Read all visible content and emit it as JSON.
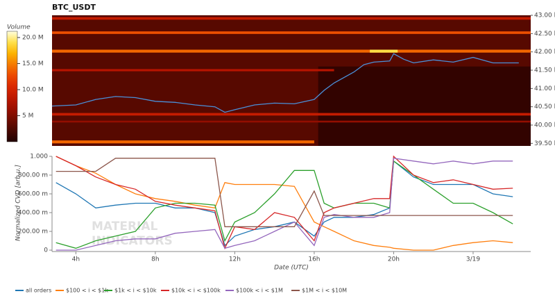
{
  "chart_data": [
    {
      "type": "heatmap",
      "title": "BTC_USDT",
      "xlim": [
        2.8,
        26.9
      ],
      "ylim": [
        39.43,
        43.0
      ],
      "yticks": [
        {
          "value": 43.0,
          "label": "43.00 k"
        },
        {
          "value": 42.5,
          "label": "42.50 k"
        },
        {
          "value": 42.0,
          "label": "42.00 k"
        },
        {
          "value": 41.5,
          "label": "41.50 k"
        },
        {
          "value": 41.0,
          "label": "41.00 k"
        },
        {
          "value": 40.5,
          "label": "40.50 k"
        },
        {
          "value": 40.0,
          "label": "40.00 k"
        },
        {
          "value": 39.5,
          "label": "39.50 k"
        }
      ],
      "colorbar": {
        "label": "Volume",
        "lim": [
          0,
          21.2
        ],
        "ticks": [
          {
            "value": 20,
            "label": "20.0 M"
          },
          {
            "value": 15,
            "label": "15.0 M"
          },
          {
            "value": 10,
            "label": "10.0 M"
          },
          {
            "value": 5,
            "label": "5 M"
          }
        ]
      },
      "bands": [
        {
          "low": 39.43,
          "high": 43.0,
          "start": 2.8,
          "end": 26.9,
          "volume": 3
        },
        {
          "low": 39.43,
          "high": 41.6,
          "start": 16.2,
          "end": 26.9,
          "volume": 1
        },
        {
          "low": 42.88,
          "high": 42.95,
          "start": 2.8,
          "end": 26.9,
          "volume": 9
        },
        {
          "low": 42.49,
          "high": 42.56,
          "start": 2.8,
          "end": 26.9,
          "volume": 13
        },
        {
          "low": 41.98,
          "high": 42.06,
          "start": 2.8,
          "end": 26.9,
          "volume": 14
        },
        {
          "low": 41.98,
          "high": 42.06,
          "start": 18.8,
          "end": 20.2,
          "volume": 19
        },
        {
          "low": 41.47,
          "high": 41.53,
          "start": 2.8,
          "end": 17.0,
          "volume": 8
        },
        {
          "low": 40.26,
          "high": 40.33,
          "start": 2.8,
          "end": 26.9,
          "volume": 9
        },
        {
          "low": 40.07,
          "high": 40.12,
          "start": 2.8,
          "end": 26.9,
          "volume": 6
        },
        {
          "low": 39.5,
          "high": 39.58,
          "start": 2.8,
          "end": 16.0,
          "volume": 14
        }
      ],
      "price": {
        "color": "#4a90d9",
        "x": [
          2.8,
          4,
          5,
          6,
          7,
          8,
          9,
          10,
          11,
          11.5,
          12,
          13,
          14,
          15,
          16,
          16.5,
          17,
          18,
          18.5,
          19,
          19.8,
          20,
          20.5,
          21,
          22,
          23,
          24,
          25,
          26.3
        ],
        "y": [
          40.52,
          40.55,
          40.7,
          40.78,
          40.75,
          40.65,
          40.62,
          40.55,
          40.5,
          40.35,
          40.42,
          40.55,
          40.6,
          40.58,
          40.7,
          40.95,
          41.15,
          41.45,
          41.65,
          41.72,
          41.75,
          41.95,
          41.8,
          41.7,
          41.78,
          41.72,
          41.85,
          41.7,
          41.7
        ]
      }
    },
    {
      "type": "line",
      "xlabel": "Date (UTC)",
      "ylabel": "Normalized CVD [arb.u.]",
      "xlim": [
        2.8,
        26.9
      ],
      "ylim": [
        0,
        1
      ],
      "xticks": [
        {
          "value": 4,
          "label": "4h"
        },
        {
          "value": 8,
          "label": "8h"
        },
        {
          "value": 12,
          "label": "12h"
        },
        {
          "value": 16,
          "label": "16h"
        },
        {
          "value": 20,
          "label": "20h"
        },
        {
          "value": 24,
          "label": "3/19"
        }
      ],
      "yticks": [
        {
          "value": 1,
          "label": "1.000"
        },
        {
          "value": 0.8,
          "label": "800.00 m"
        },
        {
          "value": 0.6,
          "label": "600.00 m"
        },
        {
          "value": 0.4,
          "label": "400.00 m"
        },
        {
          "value": 0.2,
          "label": "200.00 m"
        },
        0
      ],
      "watermark": [
        "MATERIAL",
        "INDICATORS"
      ],
      "x": [
        3,
        4,
        5,
        6,
        7,
        8,
        9,
        10,
        11,
        11.5,
        12,
        13,
        14,
        15,
        16,
        16.5,
        17,
        18,
        19,
        19.8,
        20,
        21,
        22,
        23,
        24,
        25,
        26
      ],
      "series": [
        {
          "name": "all orders",
          "color": "#1f77b4",
          "values": [
            0.72,
            0.6,
            0.45,
            0.48,
            0.5,
            0.5,
            0.45,
            0.45,
            0.4,
            0.05,
            0.15,
            0.22,
            0.25,
            0.3,
            0.15,
            0.3,
            0.35,
            0.35,
            0.38,
            0.45,
            0.95,
            0.78,
            0.7,
            0.7,
            0.7,
            0.6,
            0.57
          ]
        },
        {
          "name": "$100 < i < $1k",
          "color": "#ff7f0e",
          "values": [
            1.0,
            0.9,
            0.82,
            0.7,
            0.6,
            0.55,
            0.52,
            0.48,
            0.45,
            0.72,
            0.7,
            0.7,
            0.7,
            0.68,
            0.3,
            0.25,
            0.2,
            0.1,
            0.05,
            0.03,
            0.02,
            0.0,
            0.0,
            0.05,
            0.08,
            0.1,
            0.08
          ]
        },
        {
          "name": "$1k < i < $10k",
          "color": "#2ca02c",
          "values": [
            0.08,
            0.02,
            0.1,
            0.15,
            0.2,
            0.45,
            0.5,
            0.5,
            0.48,
            0.1,
            0.3,
            0.4,
            0.6,
            0.85,
            0.85,
            0.5,
            0.45,
            0.5,
            0.5,
            0.45,
            0.95,
            0.8,
            0.65,
            0.5,
            0.5,
            0.4,
            0.28
          ]
        },
        {
          "name": "$10k < i < $100k",
          "color": "#d62728",
          "values": [
            1.0,
            0.9,
            0.78,
            0.7,
            0.65,
            0.52,
            0.48,
            0.45,
            0.42,
            0.02,
            0.25,
            0.22,
            0.4,
            0.35,
            0.1,
            0.4,
            0.45,
            0.5,
            0.55,
            0.55,
            1.0,
            0.8,
            0.72,
            0.75,
            0.7,
            0.65,
            0.66
          ]
        },
        {
          "name": "$100k < i < $1M",
          "color": "#9467bd",
          "values": [
            0.0,
            0.0,
            0.05,
            0.1,
            0.12,
            0.12,
            0.18,
            0.2,
            0.22,
            0.02,
            0.05,
            0.1,
            0.2,
            0.3,
            0.05,
            0.35,
            0.38,
            0.35,
            0.35,
            0.4,
            0.98,
            0.95,
            0.92,
            0.95,
            0.92,
            0.95,
            0.95
          ]
        },
        {
          "name": "$1M < i < $10M",
          "color": "#8c564b",
          "values": [
            0.84,
            0.84,
            0.84,
            0.98,
            0.98,
            0.98,
            0.98,
            0.98,
            0.98,
            0.25,
            0.25,
            0.25,
            0.25,
            0.25,
            0.63,
            0.37,
            0.37,
            0.37,
            0.37,
            0.37,
            0.37,
            0.37,
            0.37,
            0.37,
            0.37,
            0.37,
            0.37
          ]
        }
      ]
    }
  ]
}
